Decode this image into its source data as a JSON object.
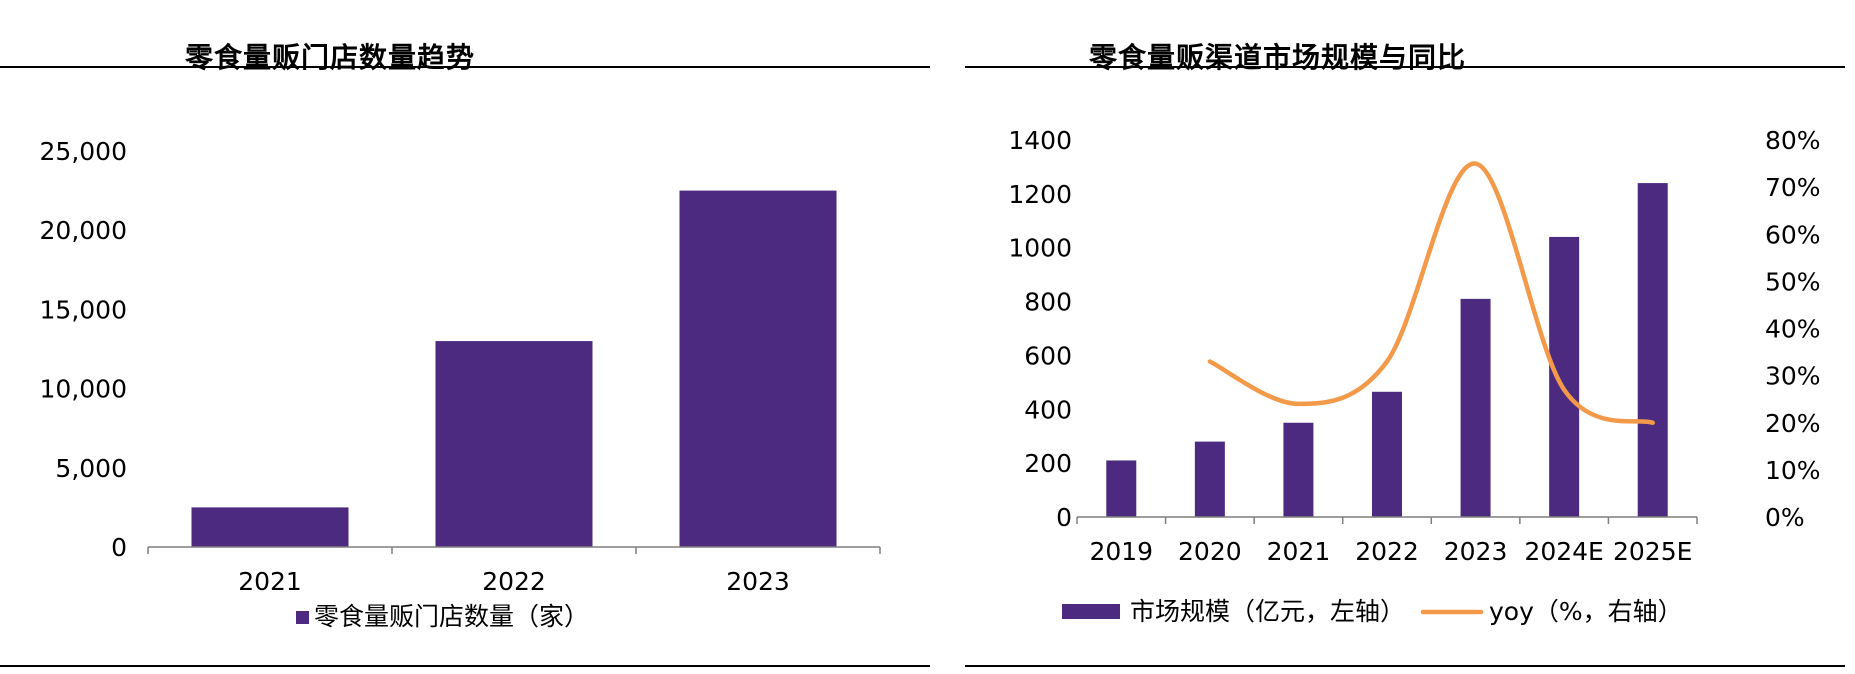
{
  "chart_data": [
    {
      "type": "bar",
      "title": "零食量贩门店数量趋势",
      "categories": [
        "2021",
        "2022",
        "2023"
      ],
      "series": [
        {
          "name": "零食量贩门店数量（家）",
          "values": [
            2500,
            13000,
            22500
          ],
          "color": "#4B2A80"
        }
      ],
      "yticks": [
        "0",
        "5,000",
        "10,000",
        "15,000",
        "20,000",
        "25,000"
      ],
      "ylim": [
        0,
        25000
      ],
      "legend": "bottom"
    },
    {
      "type": "bar-line",
      "title": "零食量贩渠道市场规模与同比",
      "categories": [
        "2019",
        "2020",
        "2021",
        "2022",
        "2023",
        "2024E",
        "2025E"
      ],
      "series": [
        {
          "name": "市场规模（亿元，左轴）",
          "type": "bar",
          "axis": "left",
          "color": "#4B2A80",
          "values": [
            210,
            280,
            350,
            465,
            810,
            1040,
            1240
          ]
        },
        {
          "name": "yoy（%，右轴）",
          "type": "line",
          "axis": "right",
          "color": "#F39A4A",
          "values": [
            null,
            33,
            24,
            33,
            75,
            27,
            20
          ]
        }
      ],
      "yticks_left": [
        "0",
        "200",
        "400",
        "600",
        "800",
        "1000",
        "1200",
        "1400"
      ],
      "ylim_left": [
        0,
        1400
      ],
      "yticks_right": [
        "0%",
        "10%",
        "20%",
        "30%",
        "40%",
        "50%",
        "60%",
        "70%",
        "80%"
      ],
      "ylim_right": [
        0,
        80
      ],
      "legend": "bottom"
    }
  ]
}
